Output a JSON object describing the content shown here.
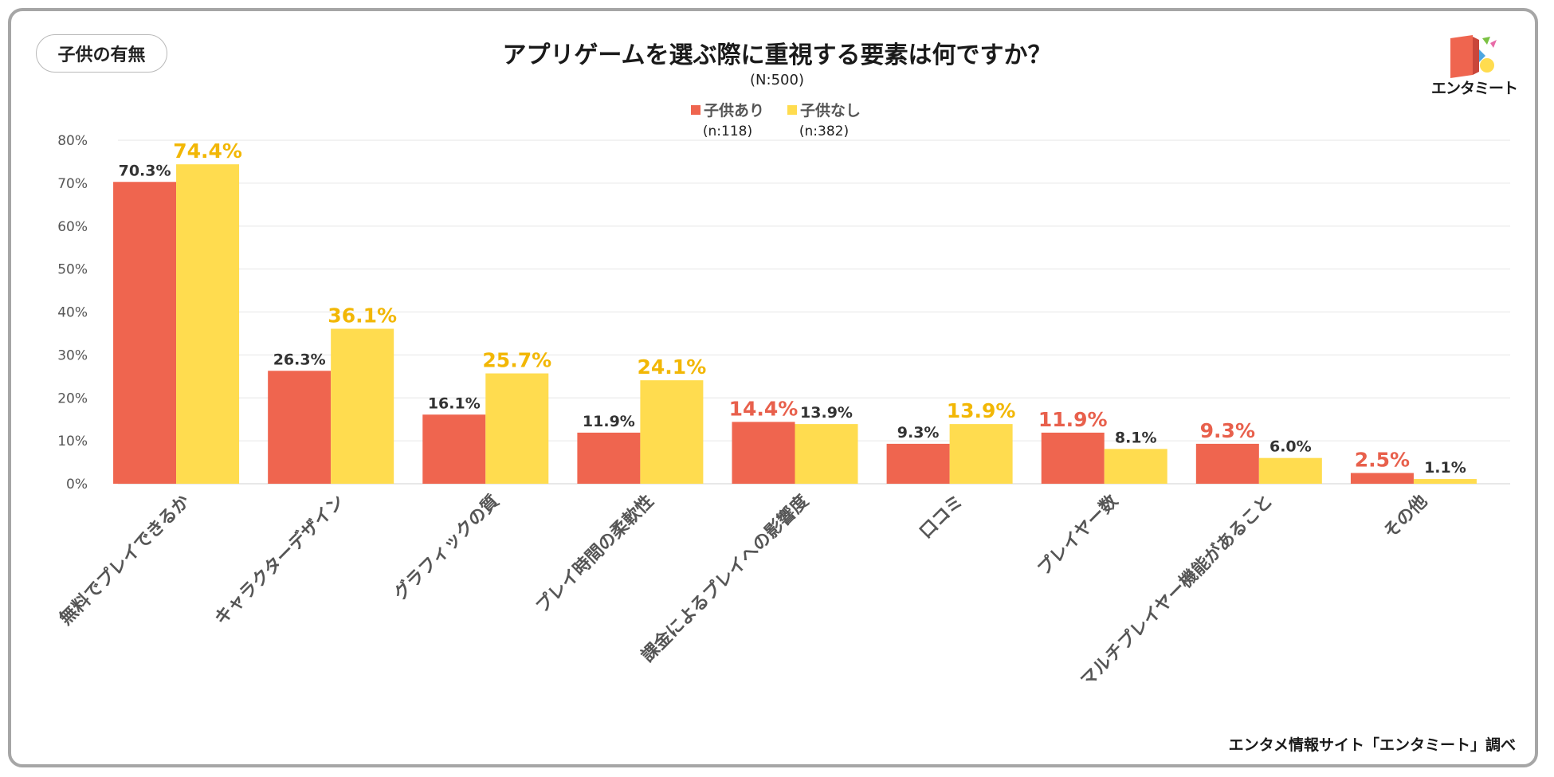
{
  "badge": "子供の有無",
  "logo_text": "エンタミート",
  "source_note": "エンタメ情報サイト「エンタミート」調べ",
  "colors": {
    "with_children": "#ef654f",
    "without_children": "#ffdc4f",
    "grid": "#e6e6e6"
  },
  "chart_data": {
    "type": "bar",
    "title": "アプリゲームを選ぶ際に重視する要素は何ですか？",
    "subtitle": "(N:500)",
    "categories": [
      "無料でプレイできるか",
      "キャラクターデザイン",
      "グラフィックの質",
      "プレイ時間の柔軟性",
      "課金によるプレイへの影響度",
      "口コミ",
      "プレイヤー数",
      "マルチプレイヤー機能があること",
      "その他"
    ],
    "series": [
      {
        "name": "子供あり",
        "n_label": "(n:118)",
        "values": [
          70.3,
          26.3,
          16.1,
          11.9,
          14.4,
          9.3,
          11.9,
          9.3,
          2.5
        ]
      },
      {
        "name": "子供なし",
        "n_label": "(n:382)",
        "values": [
          74.4,
          36.1,
          25.7,
          24.1,
          13.9,
          13.9,
          8.1,
          6.0,
          1.1
        ]
      }
    ],
    "value_suffix": "%",
    "ylim": [
      0,
      80
    ],
    "yticks": [
      "0%",
      "10%",
      "20%",
      "30%",
      "40%",
      "50%",
      "60%",
      "70%",
      "80%"
    ],
    "legend_position": "top-center",
    "grid": true
  }
}
